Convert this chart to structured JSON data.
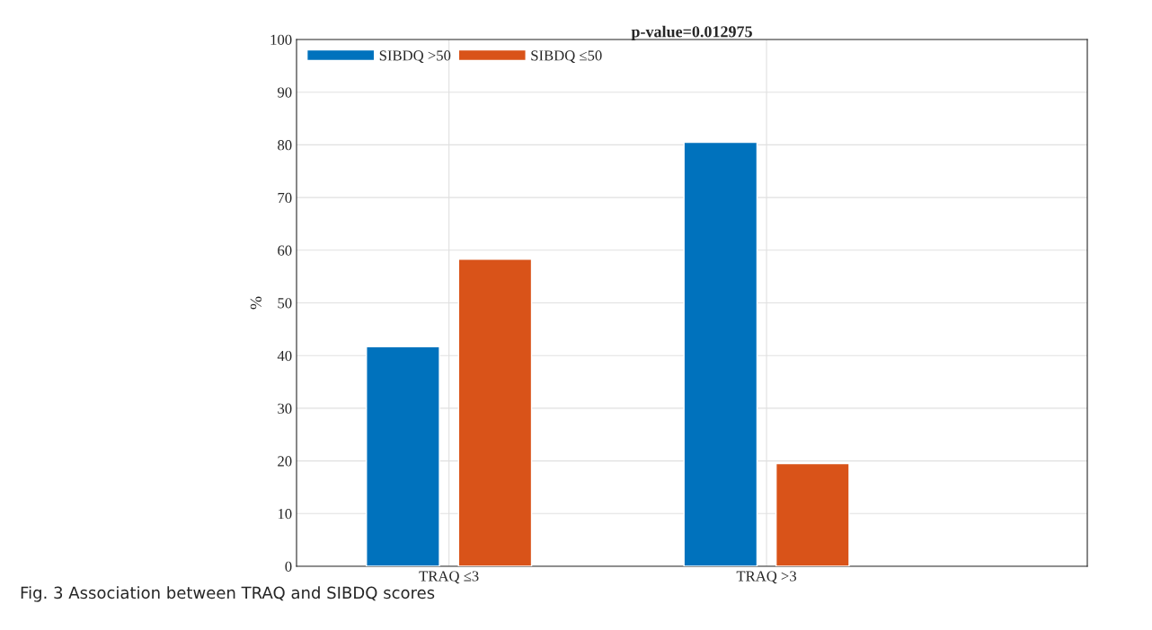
{
  "chart_data": {
    "type": "bar",
    "title": "p-value=0.012975",
    "ylabel": "%",
    "categories": [
      "TRAQ ≤3",
      "TRAQ >3"
    ],
    "series": [
      {
        "name": "SIBDQ >50",
        "color": "#0072bd",
        "values": [
          41.7,
          80.5
        ]
      },
      {
        "name": "SIBDQ ≤50",
        "color": "#d95319",
        "values": [
          58.3,
          19.5
        ]
      }
    ],
    "ylim": [
      0,
      100
    ],
    "yticks": [
      0,
      10,
      20,
      30,
      40,
      50,
      60,
      70,
      80,
      90,
      100
    ],
    "grid": true,
    "legend": "top left",
    "annotations": [
      "Fig. 3 Association between TRAQ and SIBDQ scores"
    ]
  }
}
